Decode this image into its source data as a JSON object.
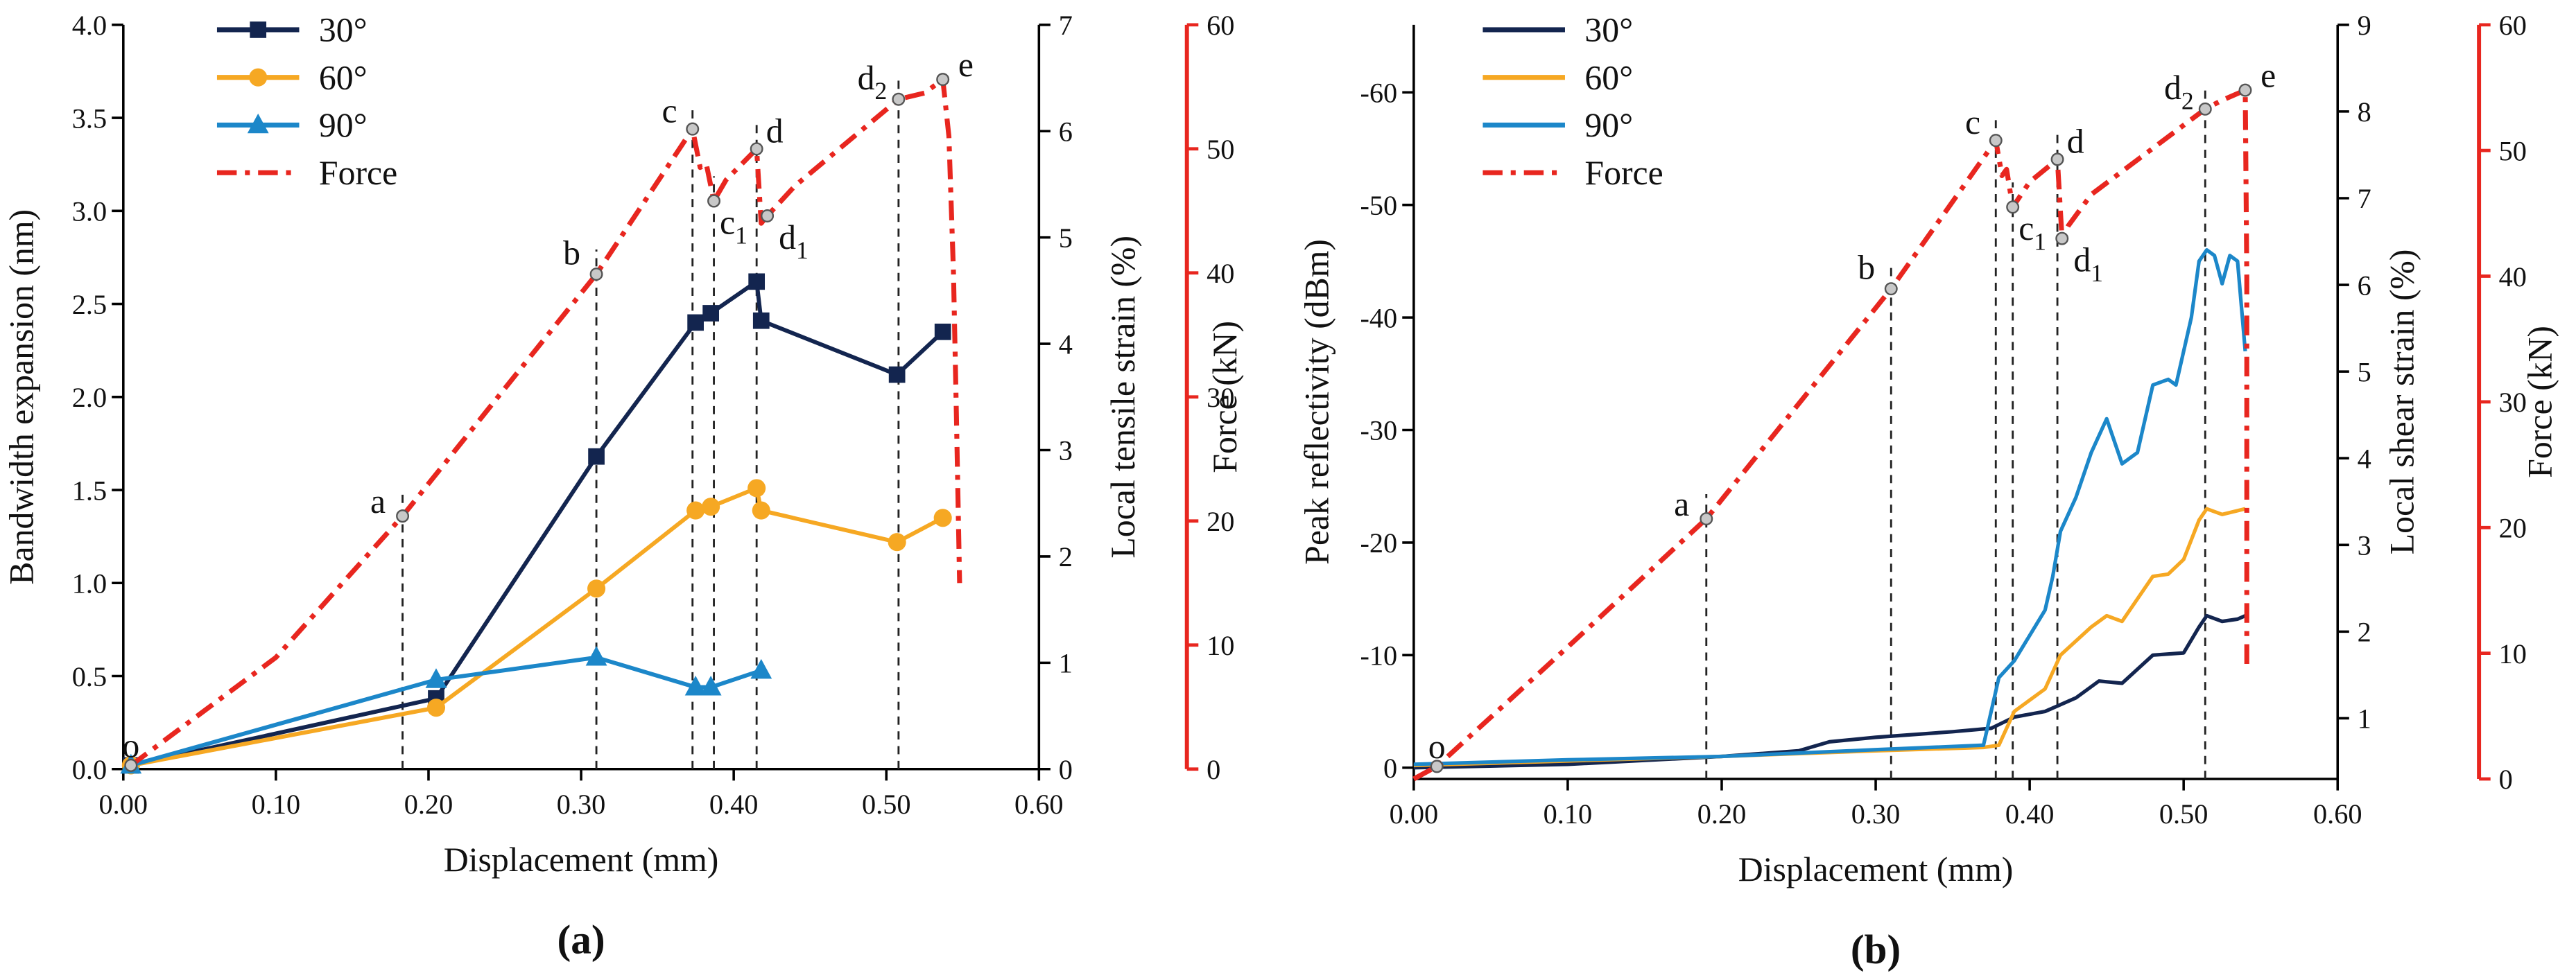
{
  "chart_data": [
    {
      "type": "line",
      "caption": "(a)",
      "xlabel": "Displacement (mm)",
      "ylabel": "Bandwidth expansion (nm)",
      "y2label": "Local tensile strain (%)",
      "y3label": "Force (kN)",
      "xlim": [
        0,
        0.6
      ],
      "xticks": [
        {
          "value": 0,
          "label": "0.00"
        },
        {
          "value": 0.1,
          "label": "0.10"
        },
        {
          "value": 0.2,
          "label": "0.20"
        },
        {
          "value": 0.3,
          "label": "0.30"
        },
        {
          "value": 0.4,
          "label": "0.40"
        },
        {
          "value": 0.5,
          "label": "0.50"
        },
        {
          "value": 0.6,
          "label": "0.60"
        }
      ],
      "ylim": [
        0,
        4
      ],
      "yticks": [
        {
          "value": 0,
          "label": "0.0"
        },
        {
          "value": 0.5,
          "label": "0.5"
        },
        {
          "value": 1,
          "label": "1.0"
        },
        {
          "value": 1.5,
          "label": "1.5"
        },
        {
          "value": 2,
          "label": "2.0"
        },
        {
          "value": 2.5,
          "label": "2.5"
        },
        {
          "value": 3,
          "label": "3.0"
        },
        {
          "value": 3.5,
          "label": "3.5"
        },
        {
          "value": 4,
          "label": "4.0"
        }
      ],
      "y2lim": [
        0,
        7
      ],
      "y2ticks": [
        0,
        1,
        2,
        3,
        4,
        5,
        6,
        7
      ],
      "y3lim": [
        0,
        60
      ],
      "y3ticks": [
        0,
        10,
        20,
        30,
        40,
        50,
        60
      ],
      "y3color": "#e8261f",
      "series": [
        {
          "name": "30°",
          "color": "#13254f",
          "marker": "square",
          "x": [
            0.005,
            0.205,
            0.31,
            0.375,
            0.385,
            0.415,
            0.418,
            0.507,
            0.537
          ],
          "values": [
            0.02,
            0.38,
            1.68,
            2.4,
            2.45,
            2.62,
            2.41,
            2.12,
            2.35
          ]
        },
        {
          "name": "60°",
          "color": "#f6a823",
          "marker": "circle",
          "x": [
            0.005,
            0.205,
            0.31,
            0.375,
            0.385,
            0.415,
            0.418,
            0.507,
            0.537
          ],
          "values": [
            0.02,
            0.33,
            0.97,
            1.39,
            1.41,
            1.51,
            1.39,
            1.22,
            1.35
          ]
        },
        {
          "name": "90°",
          "color": "#1c87c9",
          "marker": "triangle",
          "x": [
            0.005,
            0.205,
            0.31,
            0.375,
            0.385,
            0.418
          ],
          "values": [
            0.02,
            0.48,
            0.6,
            0.44,
            0.44,
            0.53
          ]
        },
        {
          "name": "Force",
          "color": "#e8261f",
          "dash": "dashdot",
          "axis": "y3",
          "x": [
            0.005,
            0.1,
            0.183,
            0.31,
            0.373,
            0.378,
            0.382,
            0.387,
            0.395,
            0.415,
            0.418,
            0.422,
            0.44,
            0.508,
            0.525,
            0.537,
            0.541,
            0.544,
            0.546,
            0.548
          ],
          "values": [
            0.3,
            9,
            20.4,
            39.9,
            51.6,
            48.5,
            48.8,
            45.8,
            47.5,
            50,
            44,
            44.6,
            47,
            54,
            54.5,
            55.6,
            51,
            40,
            28,
            15
          ]
        }
      ],
      "events": [
        {
          "label": "o",
          "x": 0.005,
          "y": 0.3,
          "dashed": false
        },
        {
          "label": "a",
          "x": 0.183,
          "y": 20.4,
          "dashed": true
        },
        {
          "label": "b",
          "x": 0.31,
          "y": 39.9,
          "dashed": true
        },
        {
          "label": "c",
          "x": 0.373,
          "y": 51.6,
          "dashed": true
        },
        {
          "label": "c",
          "sub": "1",
          "x": 0.387,
          "y": 45.8,
          "dashed": true
        },
        {
          "label": "d",
          "x": 0.415,
          "y": 50,
          "dashed": true
        },
        {
          "label": "d",
          "sub": "1",
          "x": 0.422,
          "y": 44.6,
          "dashed": false
        },
        {
          "label": "d",
          "sub": "2",
          "x": 0.508,
          "y": 54,
          "dashed": true
        },
        {
          "label": "e",
          "x": 0.537,
          "y": 55.6,
          "dashed": false
        }
      ]
    },
    {
      "type": "line",
      "caption": "(b)",
      "xlabel": "Displacement (mm)",
      "ylabel": "Peak reflectivity (dBm)",
      "y2label": "Local shear strain (%)",
      "y3label": "Force (kN)",
      "xlim": [
        0,
        0.6
      ],
      "xticks": [
        {
          "value": 0,
          "label": "0.00"
        },
        {
          "value": 0.1,
          "label": "0.10"
        },
        {
          "value": 0.2,
          "label": "0.20"
        },
        {
          "value": 0.3,
          "label": "0.30"
        },
        {
          "value": 0.4,
          "label": "0.40"
        },
        {
          "value": 0.5,
          "label": "0.50"
        },
        {
          "value": 0.6,
          "label": "0.60"
        }
      ],
      "ylim": [
        1,
        -66
      ],
      "yticks": [
        0,
        -10,
        -20,
        -30,
        -40,
        -50,
        -60
      ],
      "y2lim": [
        0.3,
        9
      ],
      "y2ticks": [
        1,
        2,
        3,
        4,
        5,
        6,
        7,
        8,
        9
      ],
      "y3lim": [
        0,
        60
      ],
      "y3ticks": [
        0,
        10,
        20,
        30,
        40,
        50,
        60
      ],
      "y3color": "#e8261f",
      "series": [
        {
          "name": "30°",
          "color": "#13254f",
          "x": [
            0,
            0.1,
            0.2,
            0.25,
            0.27,
            0.3,
            0.35,
            0.375,
            0.39,
            0.41,
            0.43,
            0.445,
            0.46,
            0.48,
            0.5,
            0.51,
            0.515,
            0.525,
            0.535,
            0.54
          ],
          "values": [
            0,
            -0.3,
            -1,
            -1.5,
            -2.3,
            -2.7,
            -3.2,
            -3.5,
            -4.5,
            -5,
            -6.2,
            -7.7,
            -7.5,
            -10,
            -10.2,
            -12.5,
            -13.5,
            -13,
            -13.2,
            -13.5
          ]
        },
        {
          "name": "60°",
          "color": "#f6a823",
          "x": [
            0,
            0.1,
            0.2,
            0.3,
            0.37,
            0.38,
            0.39,
            0.41,
            0.42,
            0.44,
            0.45,
            0.46,
            0.48,
            0.49,
            0.5,
            0.51,
            0.515,
            0.525,
            0.54
          ],
          "values": [
            -0.2,
            -0.6,
            -1,
            -1.5,
            -1.8,
            -2,
            -5,
            -7,
            -10,
            -12.5,
            -13.5,
            -13,
            -17,
            -17.2,
            -18.5,
            -22,
            -23,
            -22.5,
            -23
          ]
        },
        {
          "name": "90°",
          "color": "#1c87c9",
          "x": [
            0,
            0.1,
            0.2,
            0.3,
            0.37,
            0.38,
            0.39,
            0.41,
            0.415,
            0.42,
            0.43,
            0.44,
            0.45,
            0.46,
            0.47,
            0.48,
            0.49,
            0.495,
            0.505,
            0.51,
            0.515,
            0.52,
            0.525,
            0.53,
            0.535,
            0.54
          ],
          "values": [
            -0.3,
            -0.7,
            -1,
            -1.6,
            -2,
            -8,
            -9.5,
            -14,
            -17,
            -21,
            -24,
            -28,
            -31,
            -27,
            -28,
            -34,
            -34.5,
            -34,
            -40,
            -45,
            -46,
            -45.5,
            -43,
            -45.5,
            -45,
            -37
          ]
        },
        {
          "name": "Force",
          "color": "#e8261f",
          "dash": "dashdot",
          "axis": "y3",
          "x": [
            0,
            0.015,
            0.1,
            0.19,
            0.31,
            0.378,
            0.382,
            0.385,
            0.389,
            0.4,
            0.418,
            0.421,
            0.425,
            0.44,
            0.514,
            0.525,
            0.54,
            0.541,
            0.541
          ],
          "values": [
            0,
            1,
            10.5,
            20.7,
            39,
            50.8,
            48,
            48.5,
            45.5,
            47.5,
            49.3,
            43,
            44,
            46.5,
            53.3,
            54,
            54.8,
            40,
            9
          ]
        }
      ],
      "events": [
        {
          "label": "o",
          "x": 0.015,
          "y": 1,
          "dashed": false
        },
        {
          "label": "a",
          "x": 0.19,
          "y": 20.7,
          "dashed": true
        },
        {
          "label": "b",
          "x": 0.31,
          "y": 39,
          "dashed": true
        },
        {
          "label": "c",
          "x": 0.378,
          "y": 50.8,
          "dashed": true
        },
        {
          "label": "c",
          "sub": "1",
          "x": 0.389,
          "y": 45.5,
          "dashed": true
        },
        {
          "label": "d",
          "x": 0.418,
          "y": 49.3,
          "dashed": true
        },
        {
          "label": "d",
          "sub": "1",
          "x": 0.421,
          "y": 43,
          "dashed": false
        },
        {
          "label": "d",
          "sub": "2",
          "x": 0.514,
          "y": 53.3,
          "dashed": true
        },
        {
          "label": "e",
          "x": 0.54,
          "y": 54.8,
          "dashed": false
        }
      ]
    }
  ]
}
